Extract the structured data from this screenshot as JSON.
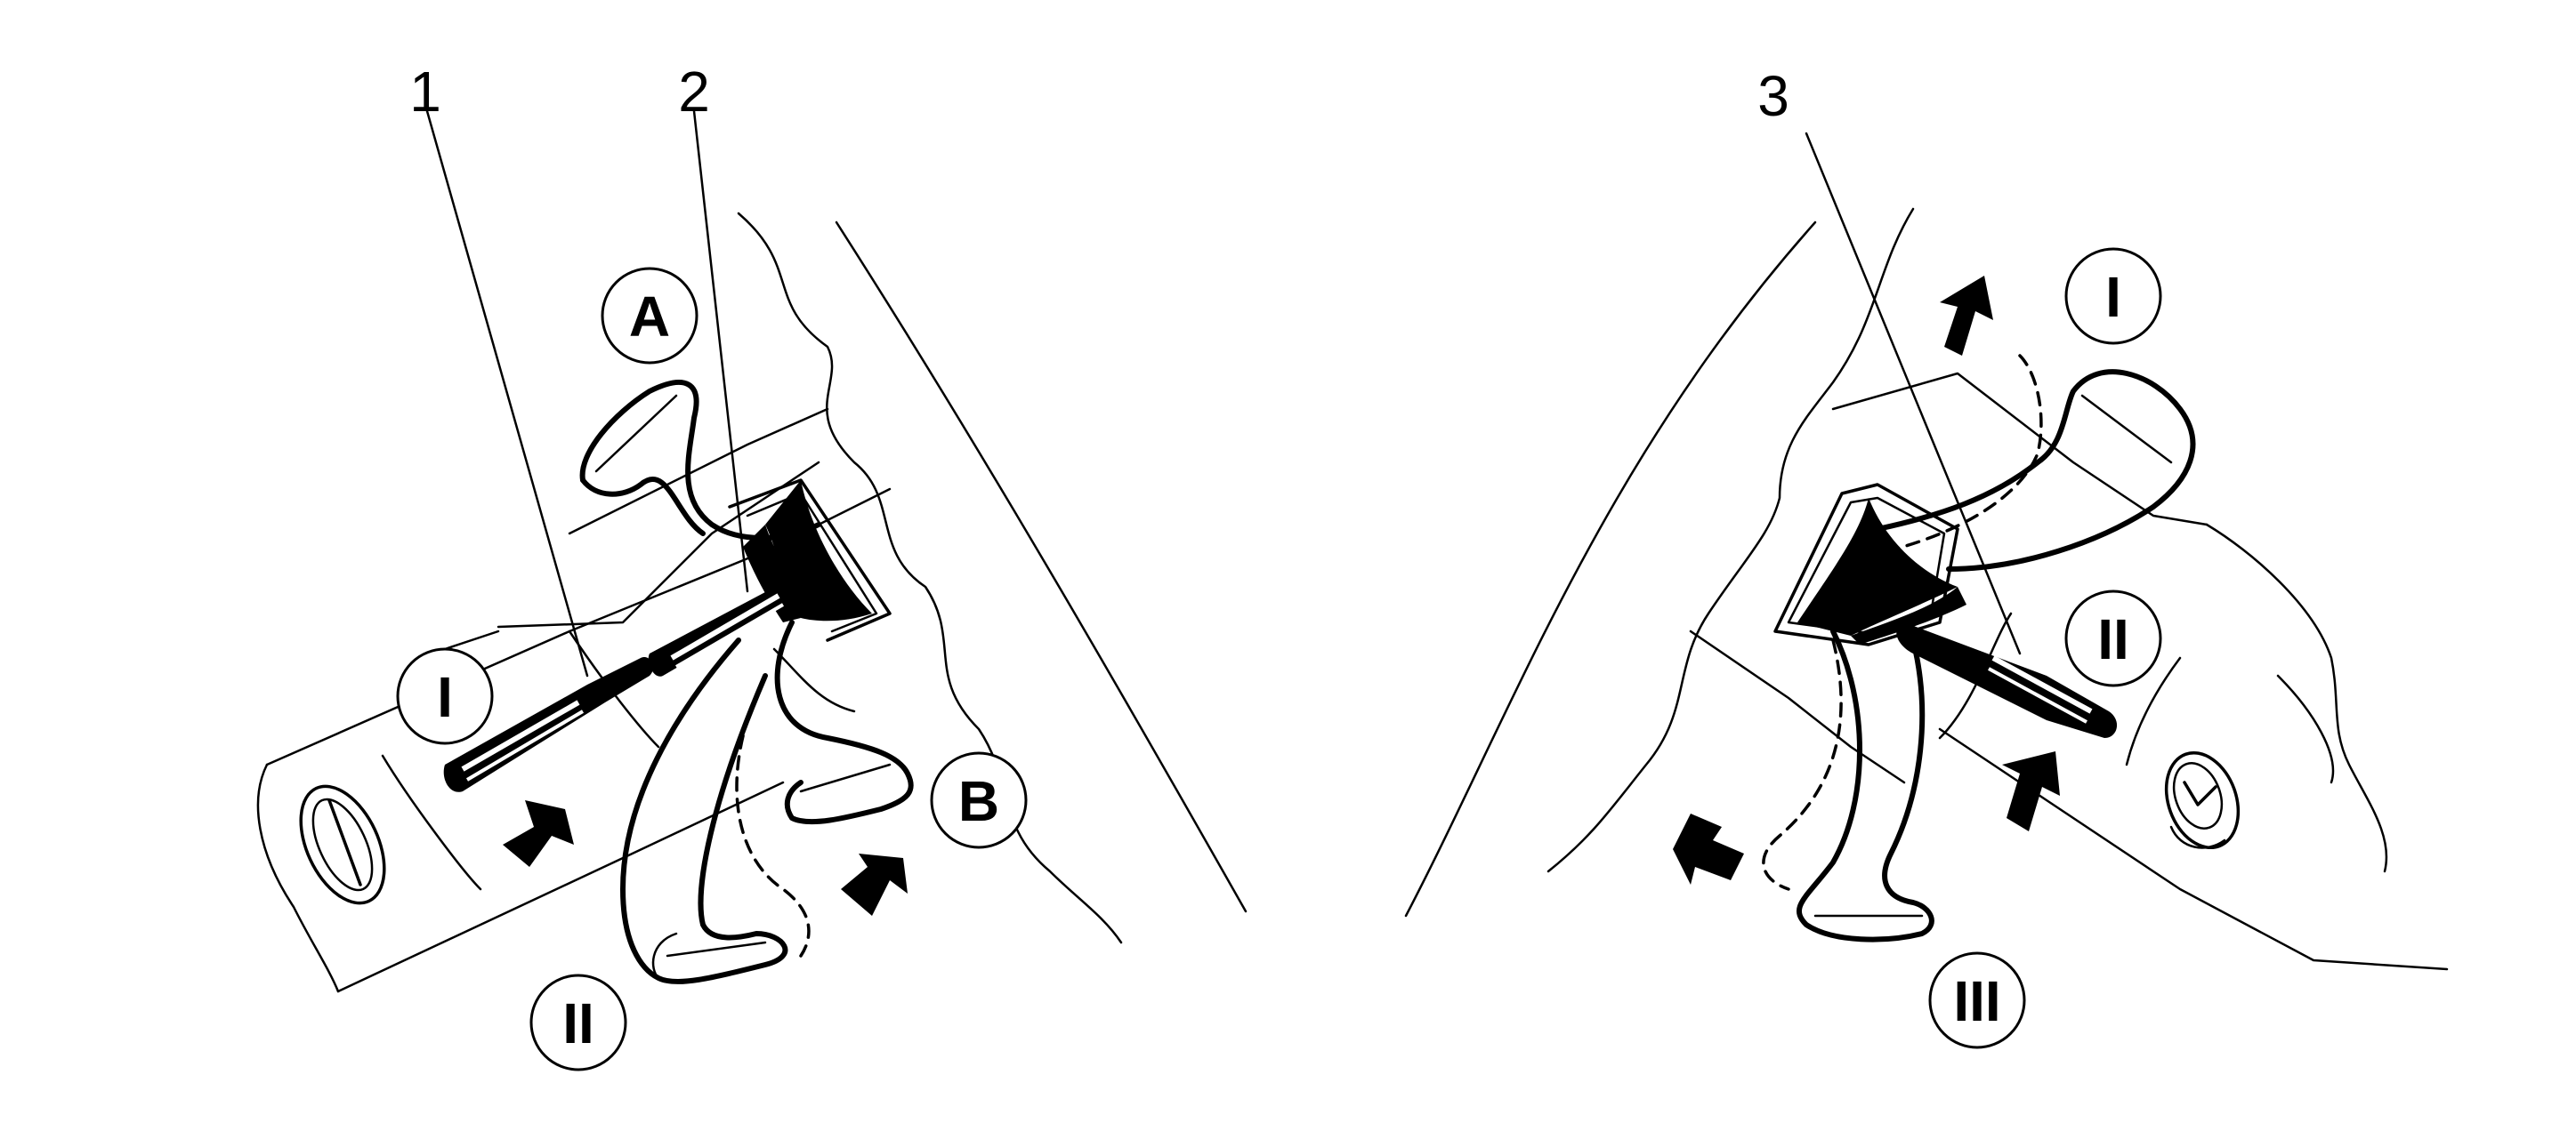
{
  "diagram": {
    "callouts": [
      "1",
      "2",
      "3"
    ],
    "left_panel": {
      "position_labels": {
        "a": "A",
        "b": "B",
        "i": "I",
        "ii": "II"
      }
    },
    "right_panel": {
      "position_labels": {
        "i": "I",
        "ii": "II",
        "iii": "III"
      }
    }
  }
}
